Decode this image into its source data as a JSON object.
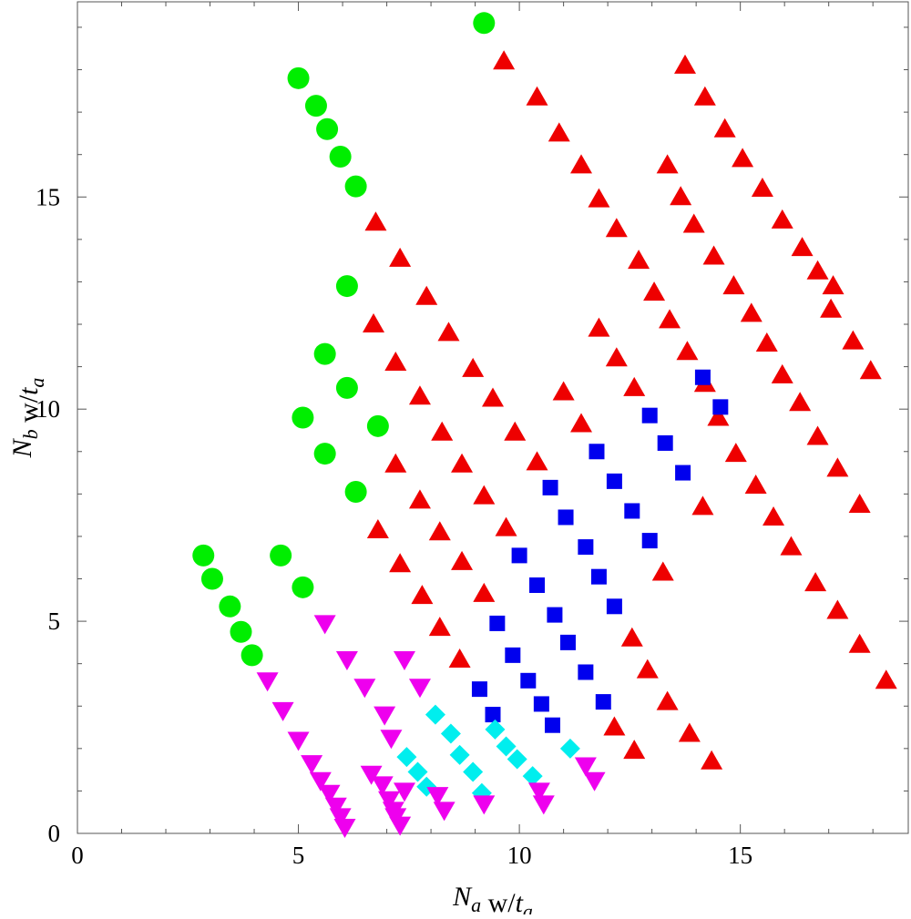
{
  "chart_data": {
    "type": "scatter",
    "title": "",
    "xlabel": "N_a w/t_a",
    "ylabel": "N_b w/t_a",
    "xlim": [
      0,
      18.8
    ],
    "ylim": [
      0,
      19.6
    ],
    "x_ticks": [
      0,
      5,
      10,
      15
    ],
    "y_ticks": [
      0,
      5,
      10,
      15
    ],
    "x_tick_labels": [
      "0",
      "5",
      "10",
      "15"
    ],
    "y_tick_labels": [
      "0",
      "5",
      "10",
      "15"
    ],
    "grid": false,
    "legend": "none",
    "series": [
      {
        "marker": "circle",
        "color": "#00ee00",
        "points": [
          [
            2.85,
            6.55
          ],
          [
            3.05,
            6.0
          ],
          [
            3.45,
            5.35
          ],
          [
            3.7,
            4.75
          ],
          [
            3.95,
            4.2
          ],
          [
            4.6,
            6.55
          ],
          [
            5.1,
            5.8
          ],
          [
            5.1,
            9.8
          ],
          [
            5.6,
            8.95
          ],
          [
            6.3,
            8.05
          ],
          [
            5.6,
            11.3
          ],
          [
            6.1,
            10.5
          ],
          [
            6.8,
            9.6
          ],
          [
            6.1,
            12.9
          ],
          [
            5.0,
            17.8
          ],
          [
            5.4,
            17.15
          ],
          [
            5.65,
            16.6
          ],
          [
            5.95,
            15.95
          ],
          [
            6.3,
            15.25
          ],
          [
            9.2,
            19.1
          ]
        ]
      },
      {
        "marker": "triangle-up",
        "color": "#ee0000",
        "points": [
          [
            6.75,
            14.4
          ],
          [
            7.3,
            13.55
          ],
          [
            7.9,
            12.65
          ],
          [
            8.4,
            11.8
          ],
          [
            8.95,
            10.95
          ],
          [
            9.4,
            10.25
          ],
          [
            9.9,
            9.45
          ],
          [
            10.4,
            8.75
          ],
          [
            6.7,
            12.0
          ],
          [
            7.2,
            11.1
          ],
          [
            7.75,
            10.3
          ],
          [
            8.25,
            9.45
          ],
          [
            8.7,
            8.7
          ],
          [
            9.2,
            7.95
          ],
          [
            9.7,
            7.2
          ],
          [
            7.2,
            8.7
          ],
          [
            7.75,
            7.85
          ],
          [
            8.2,
            7.1
          ],
          [
            8.7,
            6.4
          ],
          [
            9.2,
            5.65
          ],
          [
            6.8,
            7.15
          ],
          [
            7.3,
            6.35
          ],
          [
            7.8,
            5.6
          ],
          [
            8.2,
            4.85
          ],
          [
            8.65,
            4.1
          ],
          [
            9.65,
            18.2
          ],
          [
            10.4,
            17.35
          ],
          [
            10.9,
            16.5
          ],
          [
            11.4,
            15.75
          ],
          [
            11.8,
            14.95
          ],
          [
            12.2,
            14.25
          ],
          [
            12.7,
            13.5
          ],
          [
            13.05,
            12.75
          ],
          [
            13.4,
            12.1
          ],
          [
            13.8,
            11.35
          ],
          [
            14.2,
            10.6
          ],
          [
            14.5,
            9.8
          ],
          [
            14.9,
            8.95
          ],
          [
            15.35,
            8.2
          ],
          [
            15.75,
            7.45
          ],
          [
            16.15,
            6.75
          ],
          [
            16.7,
            5.9
          ],
          [
            17.2,
            5.25
          ],
          [
            17.7,
            4.45
          ],
          [
            18.3,
            3.6
          ],
          [
            11.0,
            10.4
          ],
          [
            11.4,
            9.65
          ],
          [
            11.8,
            11.9
          ],
          [
            12.2,
            11.2
          ],
          [
            12.6,
            10.5
          ],
          [
            13.25,
            6.15
          ],
          [
            12.55,
            4.6
          ],
          [
            12.9,
            3.85
          ],
          [
            13.35,
            3.1
          ],
          [
            13.85,
            2.35
          ],
          [
            14.35,
            1.7
          ],
          [
            12.6,
            1.95
          ],
          [
            12.15,
            2.5
          ],
          [
            13.35,
            15.75
          ],
          [
            13.65,
            15.0
          ],
          [
            13.95,
            14.35
          ],
          [
            14.4,
            13.6
          ],
          [
            14.85,
            12.9
          ],
          [
            15.25,
            12.25
          ],
          [
            15.6,
            11.55
          ],
          [
            15.95,
            10.8
          ],
          [
            16.35,
            10.15
          ],
          [
            16.75,
            9.35
          ],
          [
            17.2,
            8.6
          ],
          [
            17.7,
            7.75
          ],
          [
            16.75,
            13.25
          ],
          [
            13.75,
            18.1
          ],
          [
            14.2,
            17.35
          ],
          [
            14.65,
            16.6
          ],
          [
            15.05,
            15.9
          ],
          [
            15.5,
            15.2
          ],
          [
            15.95,
            14.45
          ],
          [
            16.4,
            13.8
          ],
          [
            17.05,
            12.35
          ],
          [
            17.55,
            11.6
          ],
          [
            17.95,
            10.9
          ],
          [
            17.1,
            12.9
          ],
          [
            14.15,
            7.7
          ]
        ]
      },
      {
        "marker": "square",
        "color": "#0000ee",
        "points": [
          [
            9.1,
            3.4
          ],
          [
            9.4,
            2.8
          ],
          [
            9.5,
            4.95
          ],
          [
            9.85,
            4.2
          ],
          [
            10.2,
            3.6
          ],
          [
            10.5,
            3.05
          ],
          [
            10.75,
            2.55
          ],
          [
            10.0,
            6.55
          ],
          [
            10.4,
            5.85
          ],
          [
            10.8,
            5.15
          ],
          [
            11.1,
            4.5
          ],
          [
            11.5,
            3.8
          ],
          [
            11.9,
            3.1
          ],
          [
            10.7,
            8.15
          ],
          [
            11.05,
            7.45
          ],
          [
            11.5,
            6.75
          ],
          [
            11.8,
            6.05
          ],
          [
            12.15,
            5.35
          ],
          [
            11.75,
            9.0
          ],
          [
            12.15,
            8.3
          ],
          [
            12.55,
            7.6
          ],
          [
            12.95,
            6.9
          ],
          [
            12.95,
            9.85
          ],
          [
            13.3,
            9.2
          ],
          [
            13.7,
            8.5
          ],
          [
            14.15,
            10.75
          ],
          [
            14.55,
            10.05
          ]
        ]
      },
      {
        "marker": "diamond",
        "color": "#00eeee",
        "points": [
          [
            7.45,
            1.8
          ],
          [
            7.7,
            1.45
          ],
          [
            7.9,
            1.1
          ],
          [
            8.1,
            2.8
          ],
          [
            8.45,
            2.35
          ],
          [
            8.65,
            1.85
          ],
          [
            8.95,
            1.45
          ],
          [
            9.15,
            0.95
          ],
          [
            9.45,
            2.45
          ],
          [
            9.7,
            2.05
          ],
          [
            9.95,
            1.75
          ],
          [
            10.3,
            1.35
          ],
          [
            11.15,
            2.0
          ]
        ]
      },
      {
        "marker": "triangle-down",
        "color": "#ee00ee",
        "points": [
          [
            4.3,
            3.6
          ],
          [
            4.65,
            2.9
          ],
          [
            5.0,
            2.2
          ],
          [
            5.3,
            1.65
          ],
          [
            5.5,
            1.25
          ],
          [
            5.7,
            0.95
          ],
          [
            5.85,
            0.65
          ],
          [
            5.95,
            0.4
          ],
          [
            6.05,
            0.15
          ],
          [
            5.6,
            4.95
          ],
          [
            6.1,
            4.1
          ],
          [
            6.5,
            3.45
          ],
          [
            6.95,
            2.8
          ],
          [
            7.1,
            2.25
          ],
          [
            6.65,
            1.4
          ],
          [
            6.9,
            1.15
          ],
          [
            7.05,
            0.8
          ],
          [
            7.15,
            0.55
          ],
          [
            7.3,
            0.2
          ],
          [
            7.4,
            1.0
          ],
          [
            7.2,
            0.4
          ],
          [
            7.4,
            4.1
          ],
          [
            7.75,
            3.45
          ],
          [
            8.15,
            0.9
          ],
          [
            8.3,
            0.55
          ],
          [
            9.2,
            0.7
          ],
          [
            10.45,
            1.0
          ],
          [
            10.55,
            0.7
          ],
          [
            11.5,
            1.6
          ],
          [
            11.7,
            1.25
          ]
        ]
      }
    ]
  }
}
